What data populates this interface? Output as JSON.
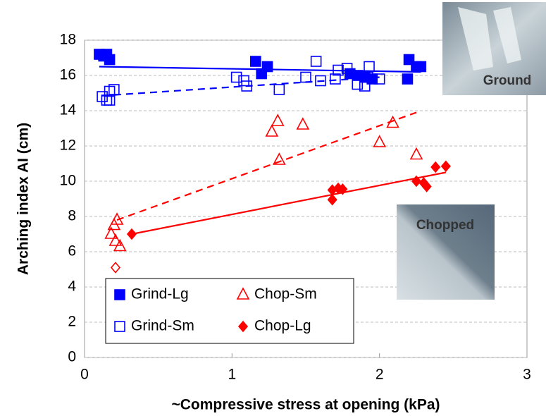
{
  "chart_data": {
    "type": "scatter",
    "x_label": "~Compressive stress at opening (kPa)",
    "y_label": "Arching index AI (cm)",
    "xlim": [
      0,
      3
    ],
    "xticks": [
      0,
      1,
      2,
      3
    ],
    "ylim": [
      0,
      18
    ],
    "yticks": [
      0,
      2,
      4,
      6,
      8,
      10,
      12,
      14,
      16,
      18
    ],
    "grid": true,
    "series": [
      {
        "name": "Grind-Lg",
        "color": "#0000ff",
        "marker": "square",
        "x": [
          0.1,
          0.13,
          0.15,
          0.17,
          1.16,
          1.2,
          1.24,
          1.8,
          1.85,
          1.9,
          1.95,
          2.19,
          2.2,
          2.25,
          2.28
        ],
        "values": [
          17.2,
          17.1,
          17.2,
          16.9,
          16.8,
          16.1,
          16.5,
          16.1,
          16.0,
          15.9,
          15.8,
          15.8,
          16.9,
          16.5,
          16.5
        ],
        "trendline": {
          "style": "solid",
          "x": [
            0.1,
            2.28
          ],
          "y": [
            16.5,
            16.2
          ]
        }
      },
      {
        "name": "Grind-Sm",
        "color": "#0000ff",
        "marker": "square-open",
        "x": [
          0.12,
          0.15,
          0.17,
          0.17,
          0.2,
          1.03,
          1.08,
          1.1,
          1.32,
          1.5,
          1.57,
          1.6,
          1.7,
          1.72,
          1.78,
          1.85,
          1.9,
          1.92,
          1.93,
          2.0
        ],
        "values": [
          14.8,
          14.6,
          14.6,
          15.1,
          15.2,
          15.9,
          15.7,
          15.4,
          15.2,
          15.9,
          16.8,
          15.7,
          15.8,
          16.3,
          16.4,
          15.5,
          15.4,
          15.9,
          16.5,
          15.8
        ],
        "trendline": {
          "style": "dashed",
          "x": [
            0.12,
            2.0
          ],
          "y": [
            14.85,
            15.9
          ]
        }
      },
      {
        "name": "Chop-Sm",
        "color": "#ff0000",
        "marker": "triangle-open",
        "x": [
          0.18,
          0.2,
          0.22,
          0.21,
          0.24,
          1.27,
          1.31,
          1.32,
          1.48,
          2.0,
          2.09,
          2.25
        ],
        "values": [
          7.0,
          7.5,
          7.8,
          6.6,
          6.3,
          12.8,
          13.4,
          11.2,
          13.2,
          12.2,
          13.3,
          11.5
        ],
        "trendline": {
          "style": "dashed",
          "x": [
            0.22,
            2.25
          ],
          "y": [
            7.8,
            13.9
          ]
        }
      },
      {
        "name": "Chop-Lg",
        "color": "#ff0000",
        "marker": "diamond",
        "x": [
          0.32,
          1.68,
          1.68,
          1.72,
          1.75,
          2.25,
          2.3,
          2.32,
          2.38,
          2.45
        ],
        "values": [
          7.0,
          9.5,
          8.95,
          9.6,
          9.55,
          10.0,
          9.9,
          9.7,
          10.8,
          10.85
        ],
        "trendline": {
          "style": "solid",
          "x": [
            0.32,
            2.45
          ],
          "y": [
            7.0,
            10.5
          ]
        }
      },
      {
        "color": "#ff0000",
        "marker": "diamond-open",
        "x": [
          0.21
        ],
        "values": [
          5.1
        ]
      }
    ],
    "insets": [
      {
        "label": "Ground"
      },
      {
        "label": "Chopped"
      }
    ]
  }
}
